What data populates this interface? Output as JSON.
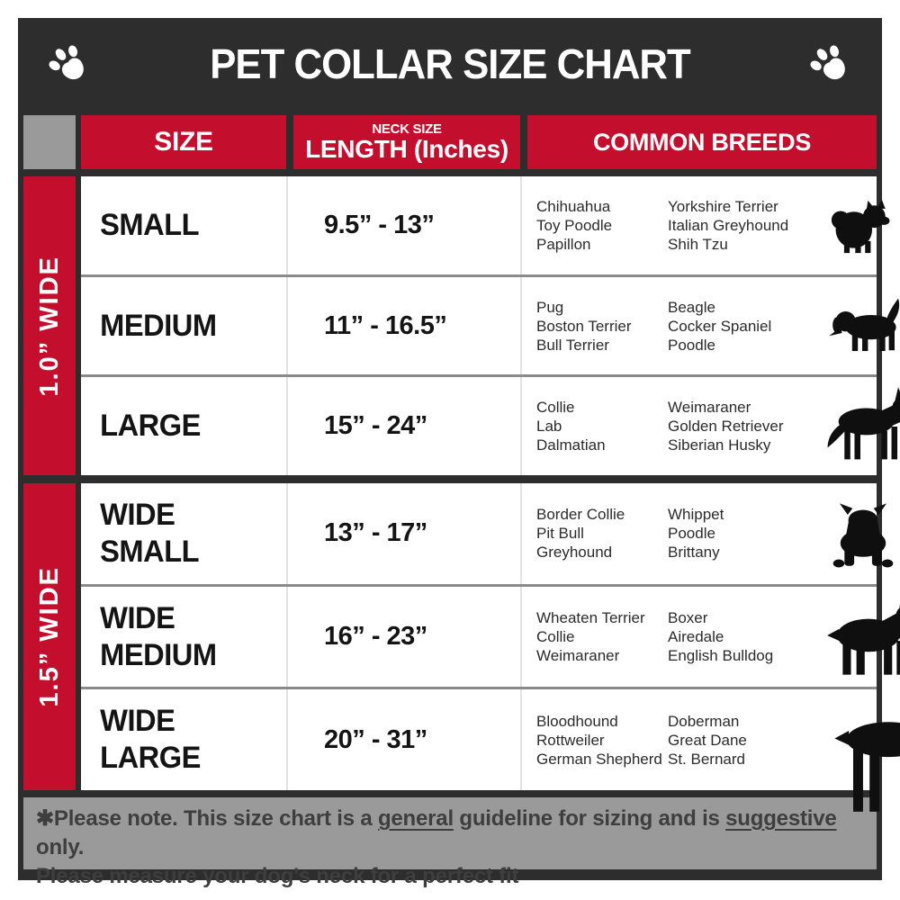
{
  "header": {
    "title": "PET COLLAR SIZE CHART"
  },
  "columns": {
    "size": "SIZE",
    "neck_size_top": "NECK SIZE",
    "neck_size_bottom": "LENGTH (Inches)",
    "breeds": "COMMON BREEDS"
  },
  "sections": [
    {
      "label": "1.0” WIDE",
      "rows": [
        {
          "size": "SMALL",
          "length": "9.5” - 13”",
          "breeds_col1": [
            "Chihuahua",
            "Toy Poodle",
            "Papillon"
          ],
          "breeds_col2": [
            "Yorkshire Terrier",
            "Italian Greyhound",
            "Shih Tzu"
          ],
          "icon": "pomeranian"
        },
        {
          "size": "MEDIUM",
          "length": "11” - 16.5”",
          "breeds_col1": [
            "Pug",
            "Boston Terrier",
            "Bull Terrier"
          ],
          "breeds_col2": [
            "Beagle",
            "Cocker Spaniel",
            "Poodle"
          ],
          "icon": "beagle"
        },
        {
          "size": "LARGE",
          "length": "15” - 24”",
          "breeds_col1": [
            "Collie",
            "Lab",
            "Dalmatian"
          ],
          "breeds_col2": [
            "Weimaraner",
            "Golden Retriever",
            "Siberian Husky"
          ],
          "icon": "german-shepherd"
        }
      ]
    },
    {
      "label": "1.5” WIDE",
      "rows": [
        {
          "size": "WIDE SMALL",
          "length": "13” - 17”",
          "breeds_col1": [
            "Border Collie",
            "Pit Bull",
            "Greyhound"
          ],
          "breeds_col2": [
            "Whippet",
            "Poodle",
            "Brittany"
          ],
          "icon": "bulldog"
        },
        {
          "size": "WIDE MEDIUM",
          "length": "16” - 23”",
          "breeds_col1": [
            "Wheaten Terrier",
            "Collie",
            "Weimaraner"
          ],
          "breeds_col2": [
            "Boxer",
            "Airedale",
            "English Bulldog"
          ],
          "icon": "pit-bull"
        },
        {
          "size": "WIDE LARGE",
          "length": "20” - 31”",
          "breeds_col1": [
            "Bloodhound",
            "Rottweiler",
            "German Shepherd"
          ],
          "breeds_col2": [
            "Doberman",
            "Great Dane",
            "St. Bernard"
          ],
          "icon": "doberman"
        }
      ]
    }
  ],
  "footer": {
    "line1_prefix": "✱Please note. This size chart is a ",
    "line1_underline1": "general",
    "line1_mid": " guideline for sizing and is ",
    "line1_underline2": "suggestive",
    "line1_suffix": " only.",
    "line2": "Please measure your dog's neck for a perfect fit"
  },
  "colors": {
    "accent_red": "#c40e2e",
    "frame_charcoal": "#2d2d2d",
    "neutral_gray": "#9a9a9a",
    "row_separator": "#8a8a8a"
  }
}
